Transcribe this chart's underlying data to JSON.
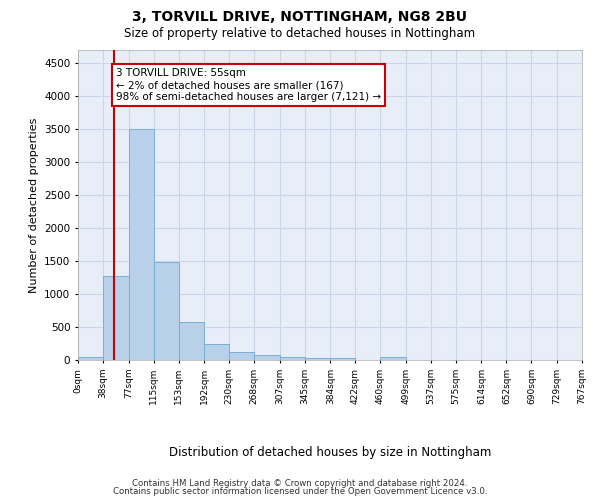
{
  "title1": "3, TORVILL DRIVE, NOTTINGHAM, NG8 2BU",
  "title2": "Size of property relative to detached houses in Nottingham",
  "xlabel": "Distribution of detached houses by size in Nottingham",
  "ylabel": "Number of detached properties",
  "footnote1": "Contains HM Land Registry data © Crown copyright and database right 2024.",
  "footnote2": "Contains public sector information licensed under the Open Government Licence v3.0.",
  "bin_edges": [
    0,
    38,
    77,
    115,
    153,
    192,
    230,
    268,
    307,
    345,
    384,
    422,
    460,
    499,
    537,
    575,
    614,
    652,
    690,
    729,
    767
  ],
  "bar_heights": [
    50,
    1270,
    3500,
    1480,
    570,
    250,
    120,
    80,
    45,
    30,
    25,
    0,
    50,
    0,
    0,
    0,
    0,
    0,
    0,
    0
  ],
  "bar_color": "#b8d0ea",
  "bar_edge_color": "#7aafd4",
  "grid_color": "#ccd6e8",
  "background_color": "#e8eef8",
  "property_size": 55,
  "red_line_color": "#cc0000",
  "annotation_line1": "3 TORVILL DRIVE: 55sqm",
  "annotation_line2": "← 2% of detached houses are smaller (167)",
  "annotation_line3": "98% of semi-detached houses are larger (7,121) →",
  "annotation_box_color": "#cc0000",
  "ylim": [
    0,
    4700
  ],
  "yticks": [
    0,
    500,
    1000,
    1500,
    2000,
    2500,
    3000,
    3500,
    4000,
    4500
  ]
}
